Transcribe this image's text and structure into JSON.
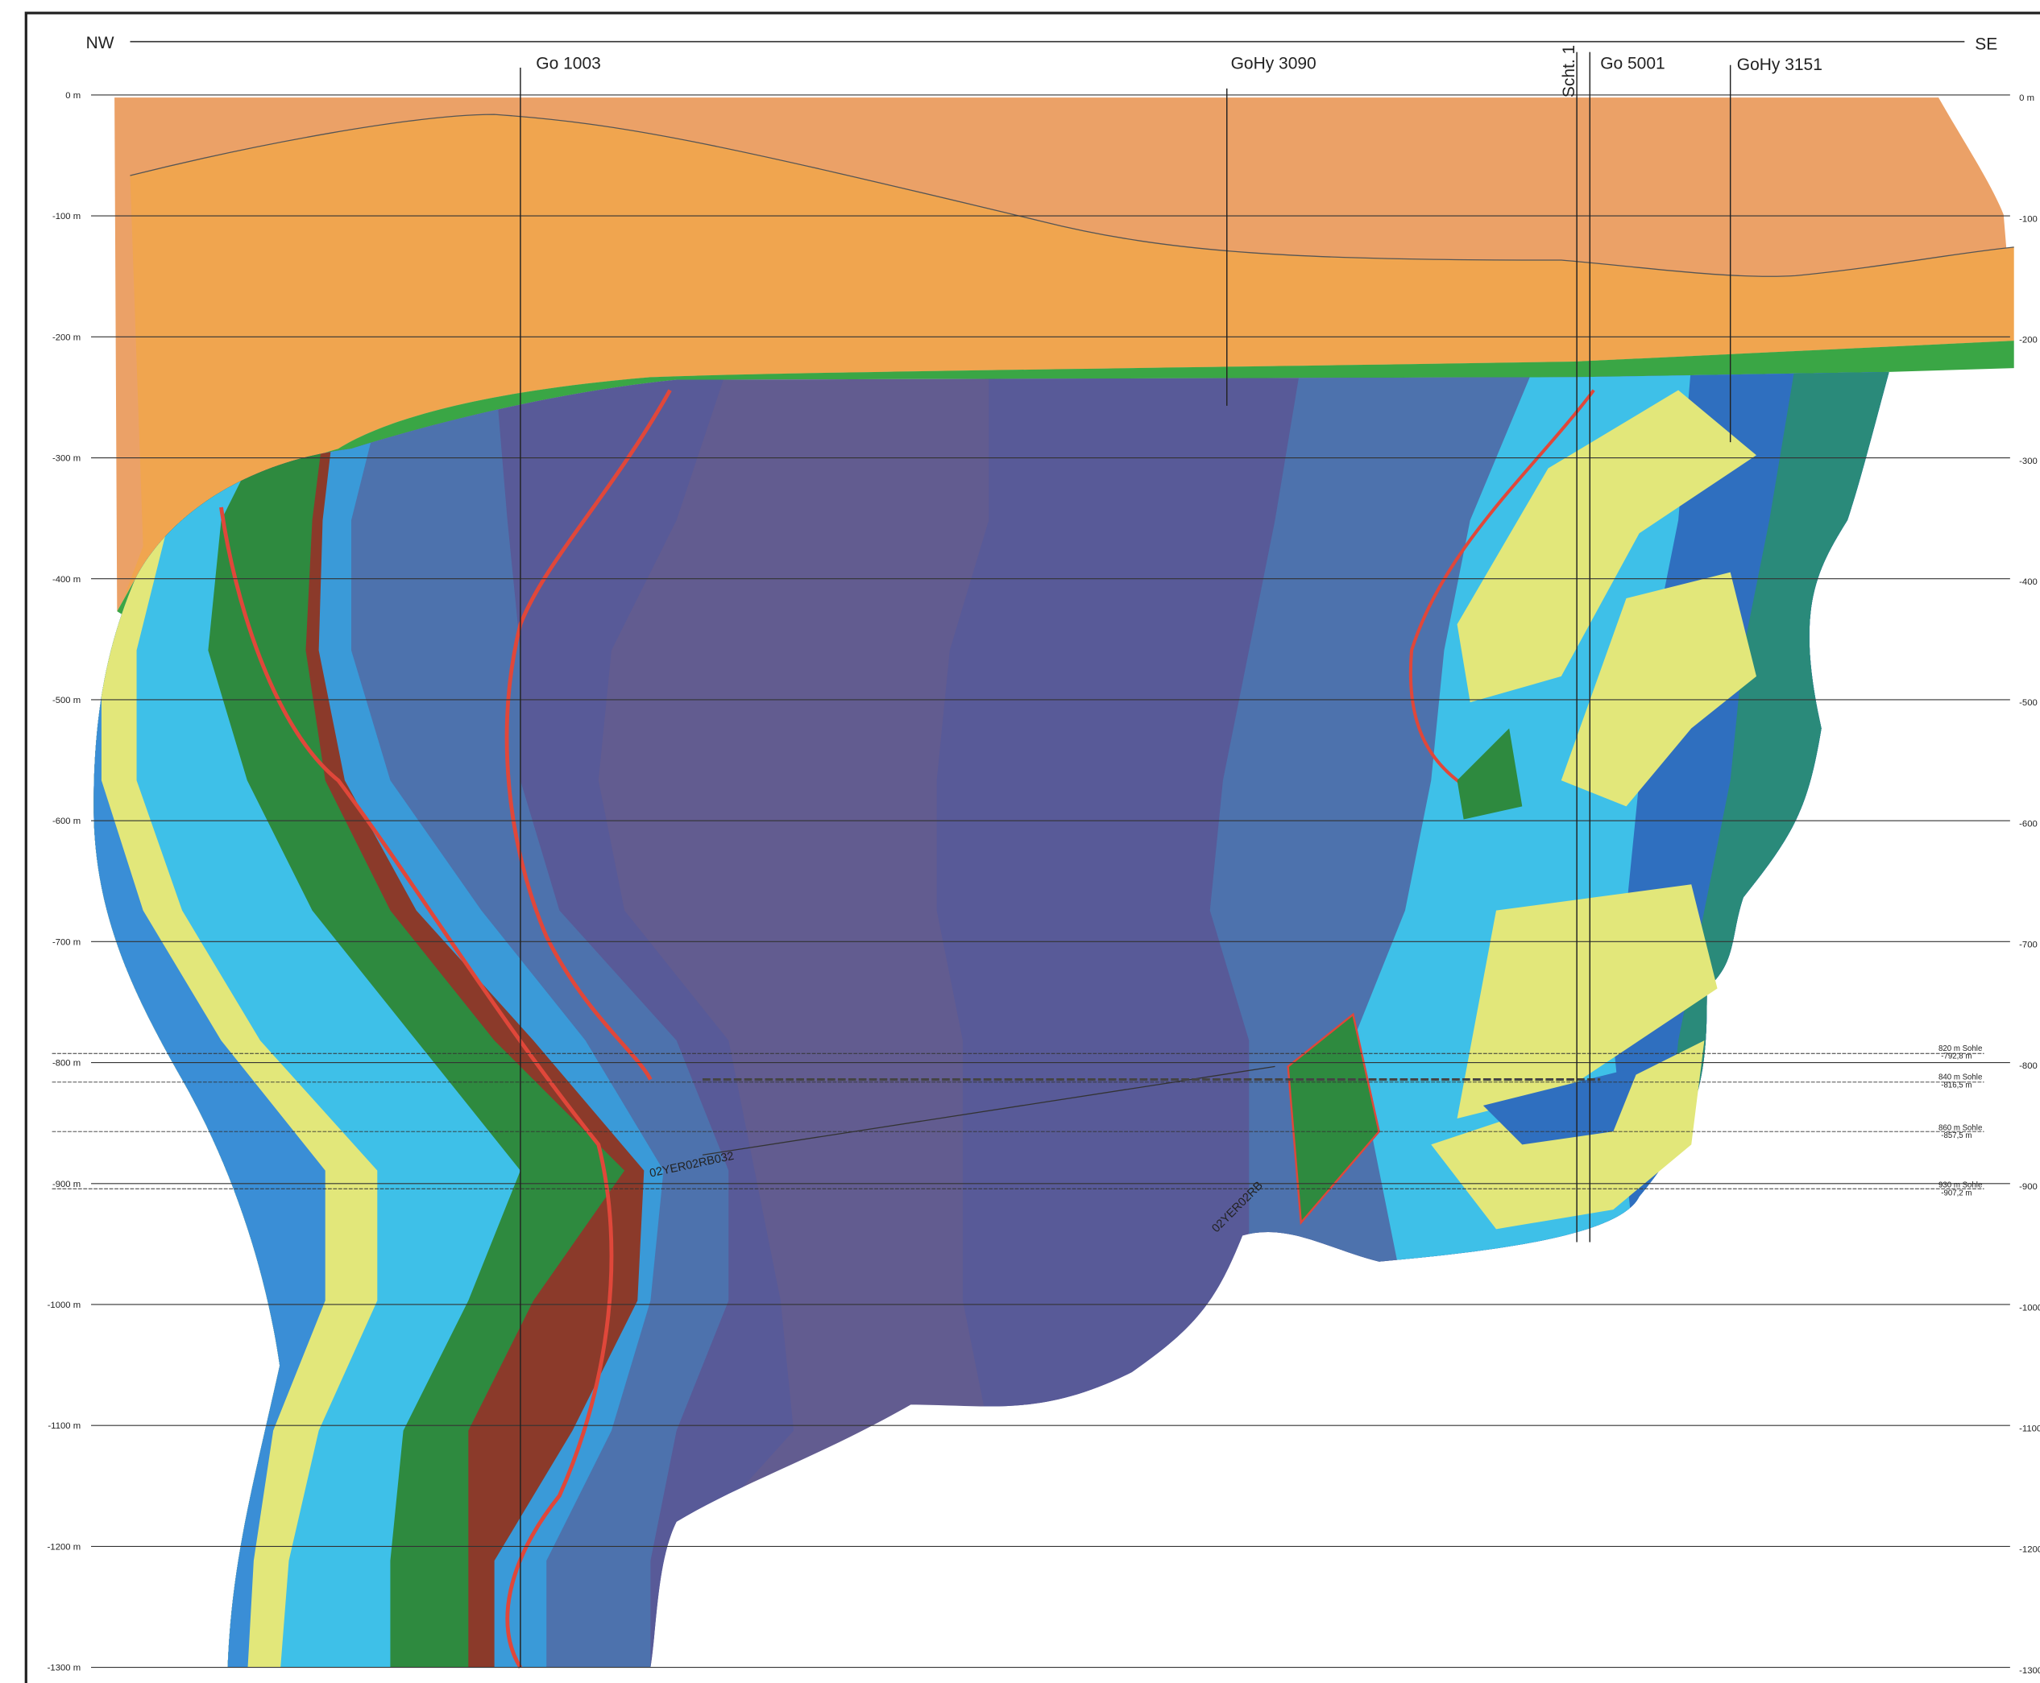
{
  "header": {
    "left": "NW",
    "right": "SE"
  },
  "boreholes": [
    "Go 1003",
    "GoHy 3090",
    "Scht. 1",
    "Go 5001",
    "GoHy 3151"
  ],
  "depth_labels_left": [
    "0 m",
    "-100 m",
    "-200 m",
    "-300 m",
    "-400 m",
    "-500 m",
    "-600 m",
    "-700 m",
    "-800 m",
    "-900 m",
    "-1000 m",
    "-1100 m",
    "-1200 m",
    "-1300 m"
  ],
  "depth_labels_right": [
    "0 m",
    "-100",
    "-200",
    "-300",
    "-400",
    "-500",
    "-600",
    "-700",
    "-800",
    "-900",
    "-1000",
    "-1100",
    "-1200",
    "-1300"
  ],
  "levels": [
    {
      "name": "820 m Sohle",
      "depth": "-792,8 m"
    },
    {
      "name": "840 m Sohle",
      "depth": "-816,5 m"
    },
    {
      "name": "860 m Sohle",
      "depth": "-857,5 m"
    },
    {
      "name": "930 m Sohle",
      "depth": "-907,2 m"
    }
  ],
  "section_labels": [
    "02YER02RB032",
    "02YER02RB"
  ]
}
